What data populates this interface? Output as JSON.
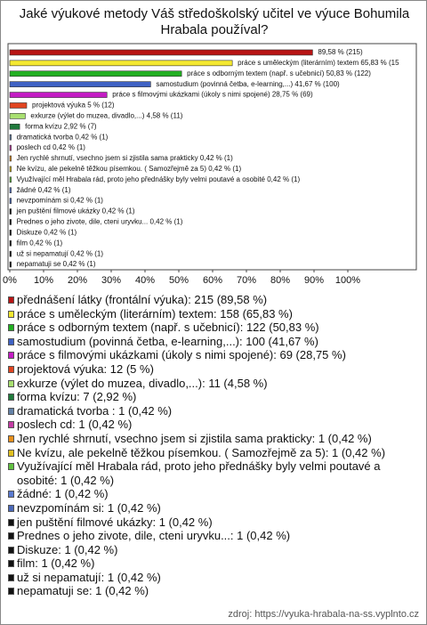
{
  "chart_data": {
    "type": "bar",
    "orientation": "horizontal",
    "title": "Jaké výukové metody Váš středoškolský učitel ve výuce Bohumila Hrabala používal?",
    "categories": [
      "přednášení látky (frontální výuka): 215 (89,58 %)",
      "práce s uměleckým (literárním) textem: 158 (65,83 %)",
      "práce s odborným textem (např. s učebnicí): 122 (50,83 %)",
      "samostudium (povinná četba, e-learning,...): 100 (41,67 %)",
      "práce s filmovými ukázkami (úkoly s nimi spojené): 69 (28,75 %)",
      "projektová výuka: 12 (5 %)",
      "exkurze (výlet do muzea, divadlo,...): 11 (4,58 %)",
      "forma kvízu: 7 (2,92 %)",
      "dramatická tvorba : 1 (0,42 %)",
      "poslech cd: 1 (0,42 %)",
      "Jen rychlé shrnutí, vsechno jsem si zjistila sama prakticky: 1 (0,42 %)",
      "Ne kvízu, ale pekelně těžkou písemkou. ( Samozřejmě za 5): 1 (0,42 %)",
      "Využívající měl Hrabala rád, proto jeho přednášky byly velmi poutavé a osobité: 1 (0,42 %)",
      "žádné: 1 (0,42 %)",
      "nevzpomínám si: 1 (0,42 %)",
      "jen puštění filmové ukázky: 1 (0,42 %)",
      "Prednes o jeho zivote, dile, cteni uryvku...: 1 (0,42 %)",
      "Diskuze: 1 (0,42 %)",
      "film: 1 (0,42 %)",
      "už si nepamatují: 1 (0,42 %)",
      "nepamatuji se: 1 (0,42 %)"
    ],
    "values": [
      89.58,
      65.83,
      50.83,
      41.67,
      28.75,
      5,
      4.58,
      2.92,
      0.42,
      0.42,
      0.42,
      0.42,
      0.42,
      0.42,
      0.42,
      0.42,
      0.42,
      0.42,
      0.42,
      0.42,
      0.42
    ],
    "value_labels": [
      "89,58 % (215)",
      "práce s uměleckým (literárním) textem 65,83 % (15",
      "práce s odborným textem (např. s učebnicí) 50,83 % (122)",
      "samostudium (povinná četba, e-learning,...) 41,67 % (100)",
      "práce s filmovými ukázkami (úkoly s nimi spojené) 28,75 % (69)",
      "projektová výuka 5 % (12)",
      "exkurze (výlet do muzea, divadlo,...) 4,58 % (11)",
      "forma kvízu 2,92 % (7)",
      "dramatická tvorba  0,42 % (1)",
      "poslech cd 0,42 % (1)",
      "Jen rychlé shrnutí, vsechno jsem si zjistila sama prakticky 0,42 % (1)",
      "Ne kvízu, ale pekelně těžkou písemkou. ( Samozřejmě za 5) 0,42 % (1)",
      "Využívající měl Hrabala rád, proto jeho přednášky byly velmi poutavé a osobité 0,42 % (1)",
      "žádné 0,42 % (1)",
      "nevzpomínám si 0,42 % (1)",
      "jen puštění filmové ukázky 0,42 % (1)",
      "Prednes o jeho zivote, dile, cteni uryvku... 0,42 % (1)",
      "Diskuze 0,42 % (1)",
      "film 0,42 % (1)",
      "už si nepamatují 0,42 % (1)",
      "nepamatuji se 0,42 % (1)"
    ],
    "colors": [
      "#b81414",
      "#f4e830",
      "#22b022",
      "#3f62c4",
      "#c41cc4",
      "#e04420",
      "#a8e070",
      "#1f7a3c",
      "#6482a8",
      "#c43ca4",
      "#e8901c",
      "#e0c020",
      "#60c040",
      "#5a7ad0",
      "#4a68b8",
      "#111111",
      "#111111",
      "#111111",
      "#111111",
      "#111111",
      "#111111"
    ],
    "xlim": [
      0,
      120
    ],
    "xticks": [
      {
        "value": 0,
        "label": "0%"
      },
      {
        "value": 10,
        "label": "10%"
      },
      {
        "value": 20,
        "label": "20%"
      },
      {
        "value": 30,
        "label": "30%"
      },
      {
        "value": 40,
        "label": "40%"
      },
      {
        "value": 50,
        "label": "50%"
      },
      {
        "value": 60,
        "label": "60%"
      },
      {
        "value": 70,
        "label": "70%"
      },
      {
        "value": 80,
        "label": "80%"
      },
      {
        "value": 90,
        "label": "90%"
      },
      {
        "value": 100,
        "label": "100%"
      }
    ],
    "source": "zdroj: https://vyuka-hrabala-na-ss.vyplnto.cz"
  }
}
